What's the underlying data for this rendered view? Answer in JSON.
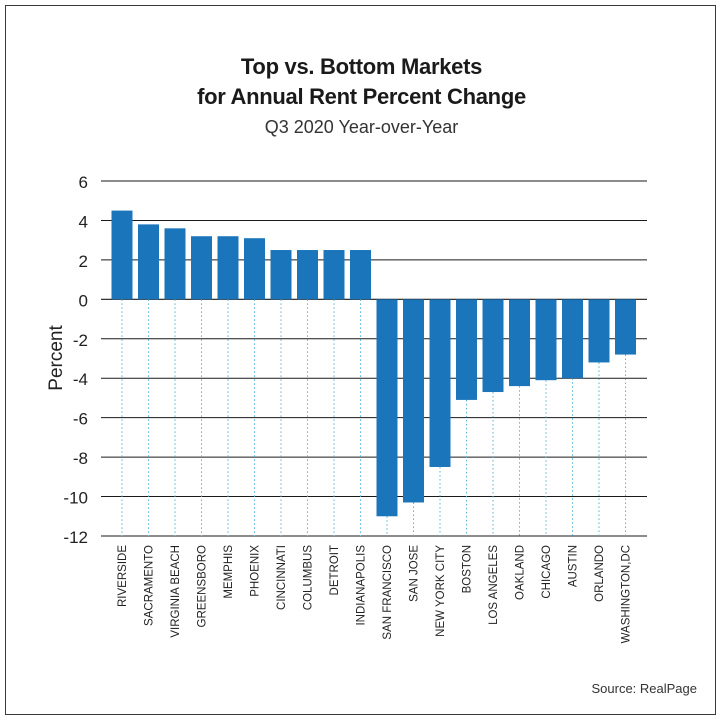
{
  "chart_data": {
    "type": "bar",
    "title_line1": "Top vs. Bottom Markets",
    "title_line2": "for Annual Rent Percent Change",
    "subtitle": "Q3 2020 Year-over-Year",
    "ylabel": "Percent",
    "source": "Source: RealPage",
    "ylim": [
      -12,
      6
    ],
    "yticks": [
      6,
      4,
      2,
      0,
      -2,
      -4,
      -6,
      -8,
      -10,
      -12
    ],
    "grid": true,
    "bar_color": "#1b75bb",
    "categories": [
      "RIVERSIDE",
      "SACRAMENTO",
      "VIRGINIA BEACH",
      "GREENSBORO",
      "MEMPHIS",
      "PHOENIX",
      "CINCINNATI",
      "COLUMBUS",
      "DETROIT",
      "INDIANAPOLIS",
      "SAN FRANCISCO",
      "SAN JOSE",
      "NEW YORK CITY",
      "BOSTON",
      "LOS ANGELES",
      "OAKLAND",
      "CHICAGO",
      "AUSTIN",
      "ORLANDO",
      "WASHINGTON,DC"
    ],
    "values": [
      4.5,
      3.8,
      3.6,
      3.2,
      3.2,
      3.1,
      2.5,
      2.5,
      2.5,
      2.5,
      -11.0,
      -10.3,
      -8.5,
      -5.1,
      -4.7,
      -4.4,
      -4.1,
      -4.0,
      -3.2,
      -2.8
    ]
  }
}
